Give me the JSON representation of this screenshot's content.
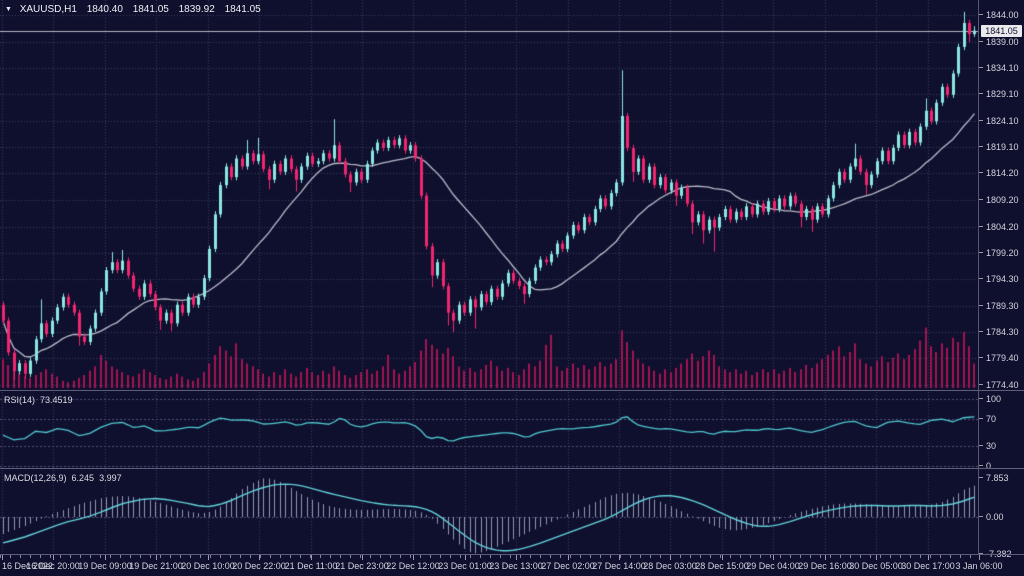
{
  "window": {
    "symbol_period": "XAUUSD,H1",
    "ohlc_display": {
      "open": "1840.40",
      "high": "1841.05",
      "low": "1839.92",
      "close": "1841.05"
    }
  },
  "colors": {
    "background": "#0f0f2e",
    "grid": "#3c3c60",
    "level": "#50507a",
    "bull": "#8be8e1",
    "bear": "#f1266e",
    "volume": "#a21551",
    "ma": "#b9bdc9",
    "bid_line": "#b6b9c3",
    "rsi_line": "#4ec9cf",
    "macd_signal": "#63d3da",
    "macd_hist": "#9298b4",
    "axis_text": "#d4d4de",
    "panel_border": "#5e5e78",
    "price_tag_bg": "#e9e9ee",
    "price_tag_text": "#11112a"
  },
  "price_axis": {
    "tick_texts": [
      "1844.00",
      "1839.00",
      "1834.10",
      "1829.10",
      "1824.10",
      "1819.10",
      "1814.20",
      "1809.20",
      "1804.20",
      "1799.20",
      "1794.30",
      "1789.30",
      "1784.30",
      "1779.40",
      "1774.40"
    ],
    "tick_values": [
      1844.0,
      1839.0,
      1834.1,
      1829.1,
      1824.1,
      1819.1,
      1814.2,
      1809.2,
      1804.2,
      1799.2,
      1794.3,
      1789.3,
      1784.3,
      1779.4,
      1774.4
    ],
    "current_price": "1841.05",
    "current_price_value": 1841.05,
    "rsi_tick_texts": [
      "100",
      "70",
      "30",
      "0"
    ],
    "rsi_tick_values": [
      100,
      70,
      30,
      0
    ],
    "macd_tick_texts": [
      "7.853",
      "0.00",
      "-7.382"
    ],
    "macd_tick_values": [
      7.853,
      0,
      -7.382
    ]
  },
  "time_axis": {
    "labels": [
      "16 Dec 2022",
      "16 Dec 20:00",
      "19 Dec 09:00",
      "19 Dec 21:00",
      "20 Dec 10:00",
      "20 Dec 22:00",
      "21 Dec 11:00",
      "21 Dec 23:00",
      "22 Dec 12:00",
      "23 Dec 01:00",
      "23 Dec 13:00",
      "27 Dec 02:00",
      "27 Dec 14:00",
      "28 Dec 03:00",
      "28 Dec 15:00",
      "29 Dec 04:00",
      "29 Dec 16:00",
      "30 Dec 05:00",
      "30 Dec 17:00",
      "3 Jan 06:00"
    ]
  },
  "indicator_labels": {
    "rsi_name": "RSI(14)",
    "rsi_value": "73.4519",
    "macd_name": "MACD(12,26,9)",
    "macd_main": "6.245",
    "macd_signal": "3.997"
  },
  "chart_data": [
    {
      "type": "candlestick",
      "symbol": "XAUUSD",
      "timeframe": "H1",
      "title": "XAUUSD,H1",
      "ylim": [
        1772.5,
        1846.8
      ],
      "y_ticks": [
        1844.0,
        1839.0,
        1834.1,
        1829.1,
        1824.1,
        1819.1,
        1814.2,
        1809.2,
        1804.2,
        1799.2,
        1794.3,
        1789.3,
        1784.3,
        1779.4,
        1774.4
      ],
      "x_tick_labels": [
        "16 Dec 2022",
        "16 Dec 20:00",
        "19 Dec 09:00",
        "19 Dec 21:00",
        "20 Dec 10:00",
        "20 Dec 22:00",
        "21 Dec 11:00",
        "21 Dec 23:00",
        "22 Dec 12:00",
        "23 Dec 01:00",
        "23 Dec 13:00",
        "27 Dec 02:00",
        "27 Dec 14:00",
        "28 Dec 03:00",
        "28 Dec 15:00",
        "29 Dec 04:00",
        "29 Dec 16:00",
        "30 Dec 05:00",
        "30 Dec 17:00",
        "3 Jan 06:00"
      ],
      "current_price": 1841.05,
      "ohlc_last": {
        "open": 1840.4,
        "high": 1841.05,
        "low": 1839.92,
        "close": 1841.05
      },
      "ma_period": 21,
      "first_open": 1789.5,
      "default_wick": 0.6,
      "close": [
        1786.5,
        1780.5,
        1777.0,
        1778.5,
        1776.5,
        1779.0,
        1783.0,
        1786.0,
        1784.0,
        1786.5,
        1789.0,
        1791.0,
        1789.5,
        1788.0,
        1783.5,
        1782.5,
        1785.0,
        1788.0,
        1792.0,
        1796.0,
        1797.5,
        1796.0,
        1797.8,
        1795.0,
        1792.5,
        1791.0,
        1793.5,
        1791.5,
        1789.0,
        1786.5,
        1788.0,
        1786.0,
        1789.5,
        1788.0,
        1791.0,
        1789.5,
        1791.0,
        1794.5,
        1800.0,
        1806.5,
        1812.0,
        1815.5,
        1813.5,
        1817.0,
        1815.5,
        1818.0,
        1816.5,
        1817.8,
        1815.0,
        1813.0,
        1816.0,
        1814.5,
        1817.0,
        1815.0,
        1813.0,
        1815.5,
        1817.5,
        1816.0,
        1816.5,
        1818.0,
        1817.0,
        1819.5,
        1816.5,
        1814.0,
        1812.5,
        1814.5,
        1813.0,
        1816.0,
        1818.5,
        1820.0,
        1819.0,
        1820.5,
        1819.5,
        1820.8,
        1818.5,
        1819.5,
        1817.0,
        1810.0,
        1800.5,
        1795.0,
        1797.5,
        1793.0,
        1788.0,
        1786.5,
        1789.5,
        1788.0,
        1790.5,
        1789.0,
        1791.5,
        1790.0,
        1792.5,
        1791.0,
        1793.5,
        1795.5,
        1794.0,
        1793.0,
        1791.5,
        1794.0,
        1796.5,
        1798.0,
        1797.5,
        1799.0,
        1801.0,
        1800.0,
        1802.5,
        1804.5,
        1803.5,
        1806.0,
        1805.0,
        1807.5,
        1809.5,
        1808.0,
        1810.5,
        1812.5,
        1825.0,
        1819.0,
        1814.5,
        1817.0,
        1813.0,
        1815.5,
        1812.0,
        1813.5,
        1811.0,
        1812.5,
        1810.0,
        1811.5,
        1808.5,
        1805.0,
        1806.5,
        1803.5,
        1805.5,
        1804.0,
        1806.0,
        1807.5,
        1805.5,
        1807.0,
        1806.0,
        1808.0,
        1806.5,
        1808.5,
        1807.0,
        1809.0,
        1807.5,
        1809.5,
        1808.0,
        1810.0,
        1808.5,
        1806.0,
        1807.5,
        1805.5,
        1808.0,
        1806.5,
        1809.5,
        1812.0,
        1814.5,
        1813.0,
        1815.5,
        1817.0,
        1814.5,
        1812.0,
        1814.0,
        1816.5,
        1818.5,
        1816.5,
        1819.0,
        1821.5,
        1819.5,
        1822.0,
        1820.0,
        1823.0,
        1826.0,
        1824.0,
        1827.5,
        1830.5,
        1829.0,
        1833.0,
        1838.0,
        1842.5,
        1840.4,
        1841.05
      ],
      "high_overrides": {
        "7": 1790.5,
        "20": 1799.4,
        "22": 1799.8,
        "45": 1820.5,
        "47": 1820.9,
        "61": 1824.4,
        "114": 1833.6,
        "157": 1819.8,
        "170": 1828.3,
        "177": 1844.6,
        "179": 1841.9
      },
      "low_overrides": {
        "2": 1775.4,
        "4": 1775.6,
        "14": 1781.8,
        "29": 1784.8,
        "31": 1784.5,
        "49": 1811.2,
        "54": 1810.8,
        "64": 1810.7,
        "79": 1792.8,
        "82": 1785.6,
        "83": 1784.3,
        "87": 1785.0,
        "96": 1789.7,
        "116": 1812.6,
        "124": 1808.1,
        "127": 1802.8,
        "129": 1801.0,
        "131": 1799.5,
        "147": 1804.0,
        "149": 1803.2,
        "159": 1810.2,
        "178": 1838.9,
        "179": 1839.9
      },
      "volume": [
        40,
        32,
        26,
        20,
        16,
        14,
        18,
        22,
        26,
        20,
        16,
        10,
        8,
        10,
        14,
        18,
        24,
        30,
        46,
        38,
        30,
        26,
        22,
        18,
        16,
        20,
        26,
        22,
        18,
        14,
        12,
        16,
        20,
        16,
        12,
        10,
        14,
        22,
        34,
        46,
        58,
        52,
        44,
        62,
        40,
        34,
        30,
        26,
        20,
        16,
        22,
        18,
        26,
        20,
        16,
        22,
        28,
        22,
        18,
        24,
        20,
        30,
        24,
        18,
        14,
        18,
        22,
        26,
        20,
        24,
        30,
        46,
        26,
        20,
        24,
        30,
        36,
        52,
        68,
        60,
        54,
        48,
        56,
        44,
        30,
        24,
        28,
        22,
        26,
        32,
        38,
        30,
        24,
        28,
        22,
        18,
        26,
        34,
        30,
        38,
        60,
        74,
        30,
        24,
        28,
        34,
        28,
        32,
        26,
        30,
        36,
        30,
        34,
        40,
        80,
        64,
        52,
        40,
        34,
        30,
        24,
        20,
        26,
        22,
        28,
        34,
        40,
        48,
        38,
        44,
        52,
        46,
        30,
        26,
        22,
        26,
        20,
        24,
        18,
        22,
        26,
        22,
        26,
        20,
        24,
        28,
        22,
        26,
        32,
        28,
        34,
        40,
        46,
        52,
        58,
        44,
        50,
        62,
        40,
        34,
        30,
        38,
        44,
        36,
        42,
        48,
        40,
        46,
        54,
        66,
        84,
        58,
        50,
        62,
        56,
        70,
        64,
        78,
        58,
        34
      ]
    },
    {
      "type": "line",
      "name": "RSI(14)",
      "last_value": 73.4519,
      "ylim": [
        0,
        100
      ],
      "levels": [
        100,
        70,
        30,
        0
      ],
      "values": [
        46,
        39,
        41,
        52,
        50,
        56,
        53,
        45,
        49,
        58,
        64,
        65,
        57,
        60,
        52,
        53,
        55,
        58,
        57,
        66,
        72,
        68,
        69,
        67,
        62,
        64,
        66,
        60,
        65,
        64,
        62,
        73,
        60,
        58,
        64,
        66,
        64,
        65,
        58,
        40,
        44,
        36,
        42,
        44,
        46,
        48,
        50,
        48,
        42,
        50,
        53,
        56,
        55,
        57,
        58,
        61,
        63,
        76,
        62,
        58,
        55,
        56,
        53,
        50,
        52,
        47,
        52,
        51,
        54,
        53,
        56,
        54,
        57,
        53,
        50,
        54,
        60,
        65,
        67,
        60,
        57,
        65,
        67,
        64,
        62,
        68,
        70,
        66,
        72,
        73.4519
      ]
    },
    {
      "type": "macd",
      "name": "MACD(12,26,9)",
      "main_last": 6.245,
      "signal_last": 3.997,
      "ylim": [
        -7.382,
        7.853
      ],
      "hist": [
        -3.4,
        -2.6,
        -1.8,
        -0.8,
        0.2,
        1.0,
        1.8,
        2.6,
        3.2,
        3.8,
        4.1,
        4.2,
        4.0,
        3.6,
        3.0,
        2.4,
        1.7,
        1.1,
        0.7,
        1.0,
        2.2,
        4.0,
        5.8,
        7.0,
        7.853,
        7.4,
        6.3,
        5.0,
        3.8,
        2.8,
        2.1,
        1.7,
        1.5,
        1.4,
        1.5,
        1.6,
        1.6,
        1.5,
        1.2,
        0.2,
        -1.8,
        -4.0,
        -6.0,
        -7.382,
        -7.0,
        -6.2,
        -5.2,
        -4.2,
        -3.2,
        -2.2,
        -1.2,
        -0.2,
        0.8,
        1.8,
        2.8,
        3.8,
        4.6,
        4.9,
        4.6,
        4.0,
        3.2,
        2.3,
        1.3,
        0.3,
        -0.7,
        -1.7,
        -2.4,
        -2.7,
        -2.5,
        -2.0,
        -1.3,
        -0.5,
        0.3,
        1.0,
        1.6,
        2.1,
        2.5,
        2.7,
        2.7,
        2.6,
        2.4,
        2.2,
        2.1,
        2.2,
        2.3,
        2.5,
        3.0,
        4.0,
        5.5,
        6.245
      ],
      "signal": [
        -5.2,
        -4.6,
        -4.0,
        -3.2,
        -2.4,
        -1.6,
        -0.9,
        -0.4,
        0.2,
        1.0,
        1.9,
        2.7,
        3.2,
        3.6,
        3.7,
        3.5,
        3.1,
        2.7,
        2.2,
        2.1,
        2.6,
        3.4,
        4.4,
        5.3,
        6.0,
        6.5,
        6.6,
        6.4,
        5.9,
        5.3,
        4.7,
        4.2,
        3.7,
        3.2,
        2.8,
        2.5,
        2.3,
        2.2,
        2.0,
        1.4,
        0.2,
        -1.5,
        -3.2,
        -4.8,
        -5.9,
        -6.6,
        -6.8,
        -6.6,
        -6.1,
        -5.4,
        -4.6,
        -3.8,
        -3.0,
        -2.2,
        -1.4,
        -0.6,
        0.4,
        1.6,
        2.8,
        3.7,
        4.2,
        4.3,
        4.0,
        3.4,
        2.6,
        1.6,
        0.6,
        -0.4,
        -1.2,
        -1.8,
        -1.9,
        -1.6,
        -1.0,
        -0.3,
        0.4,
        1.0,
        1.5,
        1.9,
        2.2,
        2.3,
        2.3,
        2.2,
        2.2,
        2.3,
        2.3,
        2.2,
        2.3,
        2.6,
        3.2,
        3.997
      ]
    }
  ]
}
